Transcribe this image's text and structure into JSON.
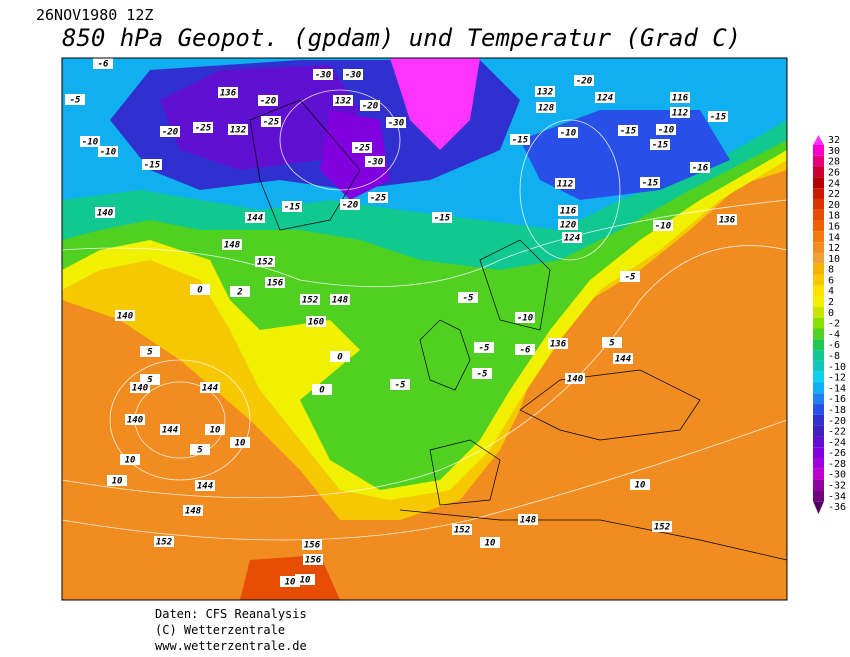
{
  "header": {
    "date": "26NOV1980 12Z",
    "title": "850 hPa Geopot. (gpdam) und  Temperatur (Grad C)"
  },
  "colorbar": {
    "levels": [
      32,
      30,
      28,
      26,
      24,
      22,
      20,
      18,
      16,
      14,
      12,
      10,
      8,
      6,
      4,
      2,
      0,
      -2,
      -4,
      -6,
      -8,
      -10,
      -12,
      -14,
      -16,
      -18,
      -20,
      -22,
      -24,
      -26,
      -28,
      -30,
      -32,
      -34,
      -36
    ],
    "colors": [
      "#ff33ff",
      "#ff00cc",
      "#e6007a",
      "#cc0033",
      "#b30000",
      "#cc1a00",
      "#d93300",
      "#e64d00",
      "#f06000",
      "#f47a10",
      "#f08c20",
      "#f0a030",
      "#f5b000",
      "#f5c800",
      "#ffe000",
      "#f0f000",
      "#c8e600",
      "#8ce000",
      "#50d020",
      "#20c850",
      "#10c890",
      "#10c8c0",
      "#10d0f0",
      "#10b0f0",
      "#2080f0",
      "#2850e8",
      "#3030d0",
      "#4020c0",
      "#6010d0",
      "#8000e0",
      "#a000e0",
      "#c000d0",
      "#9000a0",
      "#700080",
      "#500060"
    ]
  },
  "map_labels": [
    "-6",
    "-5",
    "-10",
    "-10",
    "-15",
    "-20",
    "-25",
    "132",
    "136",
    "-20",
    "-25",
    "-30",
    "-30",
    "132",
    "-20",
    "-30",
    "-25",
    "-30",
    "-25",
    "-20",
    "-15",
    "128",
    "132",
    "-20",
    "124",
    "116",
    "112",
    "-15",
    "-10",
    "-15",
    "-15",
    "-10",
    "-15",
    "112",
    "116",
    "120",
    "124",
    "-16",
    "-15",
    "136",
    "-10",
    "-5",
    "-15",
    "140",
    "144",
    "148",
    "152",
    "156",
    "160",
    "0",
    "2",
    "0",
    "-5",
    "-5",
    "-5",
    "0",
    "140",
    "5",
    "140",
    "144",
    "10",
    "5",
    "10",
    "144",
    "148",
    "152",
    "10",
    "156",
    "156",
    "10",
    "148",
    "152",
    "10",
    "140",
    "144",
    "152",
    "10",
    "5",
    "-10",
    "-6",
    "-5",
    "136",
    "144",
    "140",
    "10",
    "5",
    "10",
    "152",
    "148"
  ],
  "footer": {
    "source": "Daten: CFS Reanalysis",
    "copyright": "(C) Wetterzentrale",
    "url": "www.wetterzentrale.de"
  }
}
